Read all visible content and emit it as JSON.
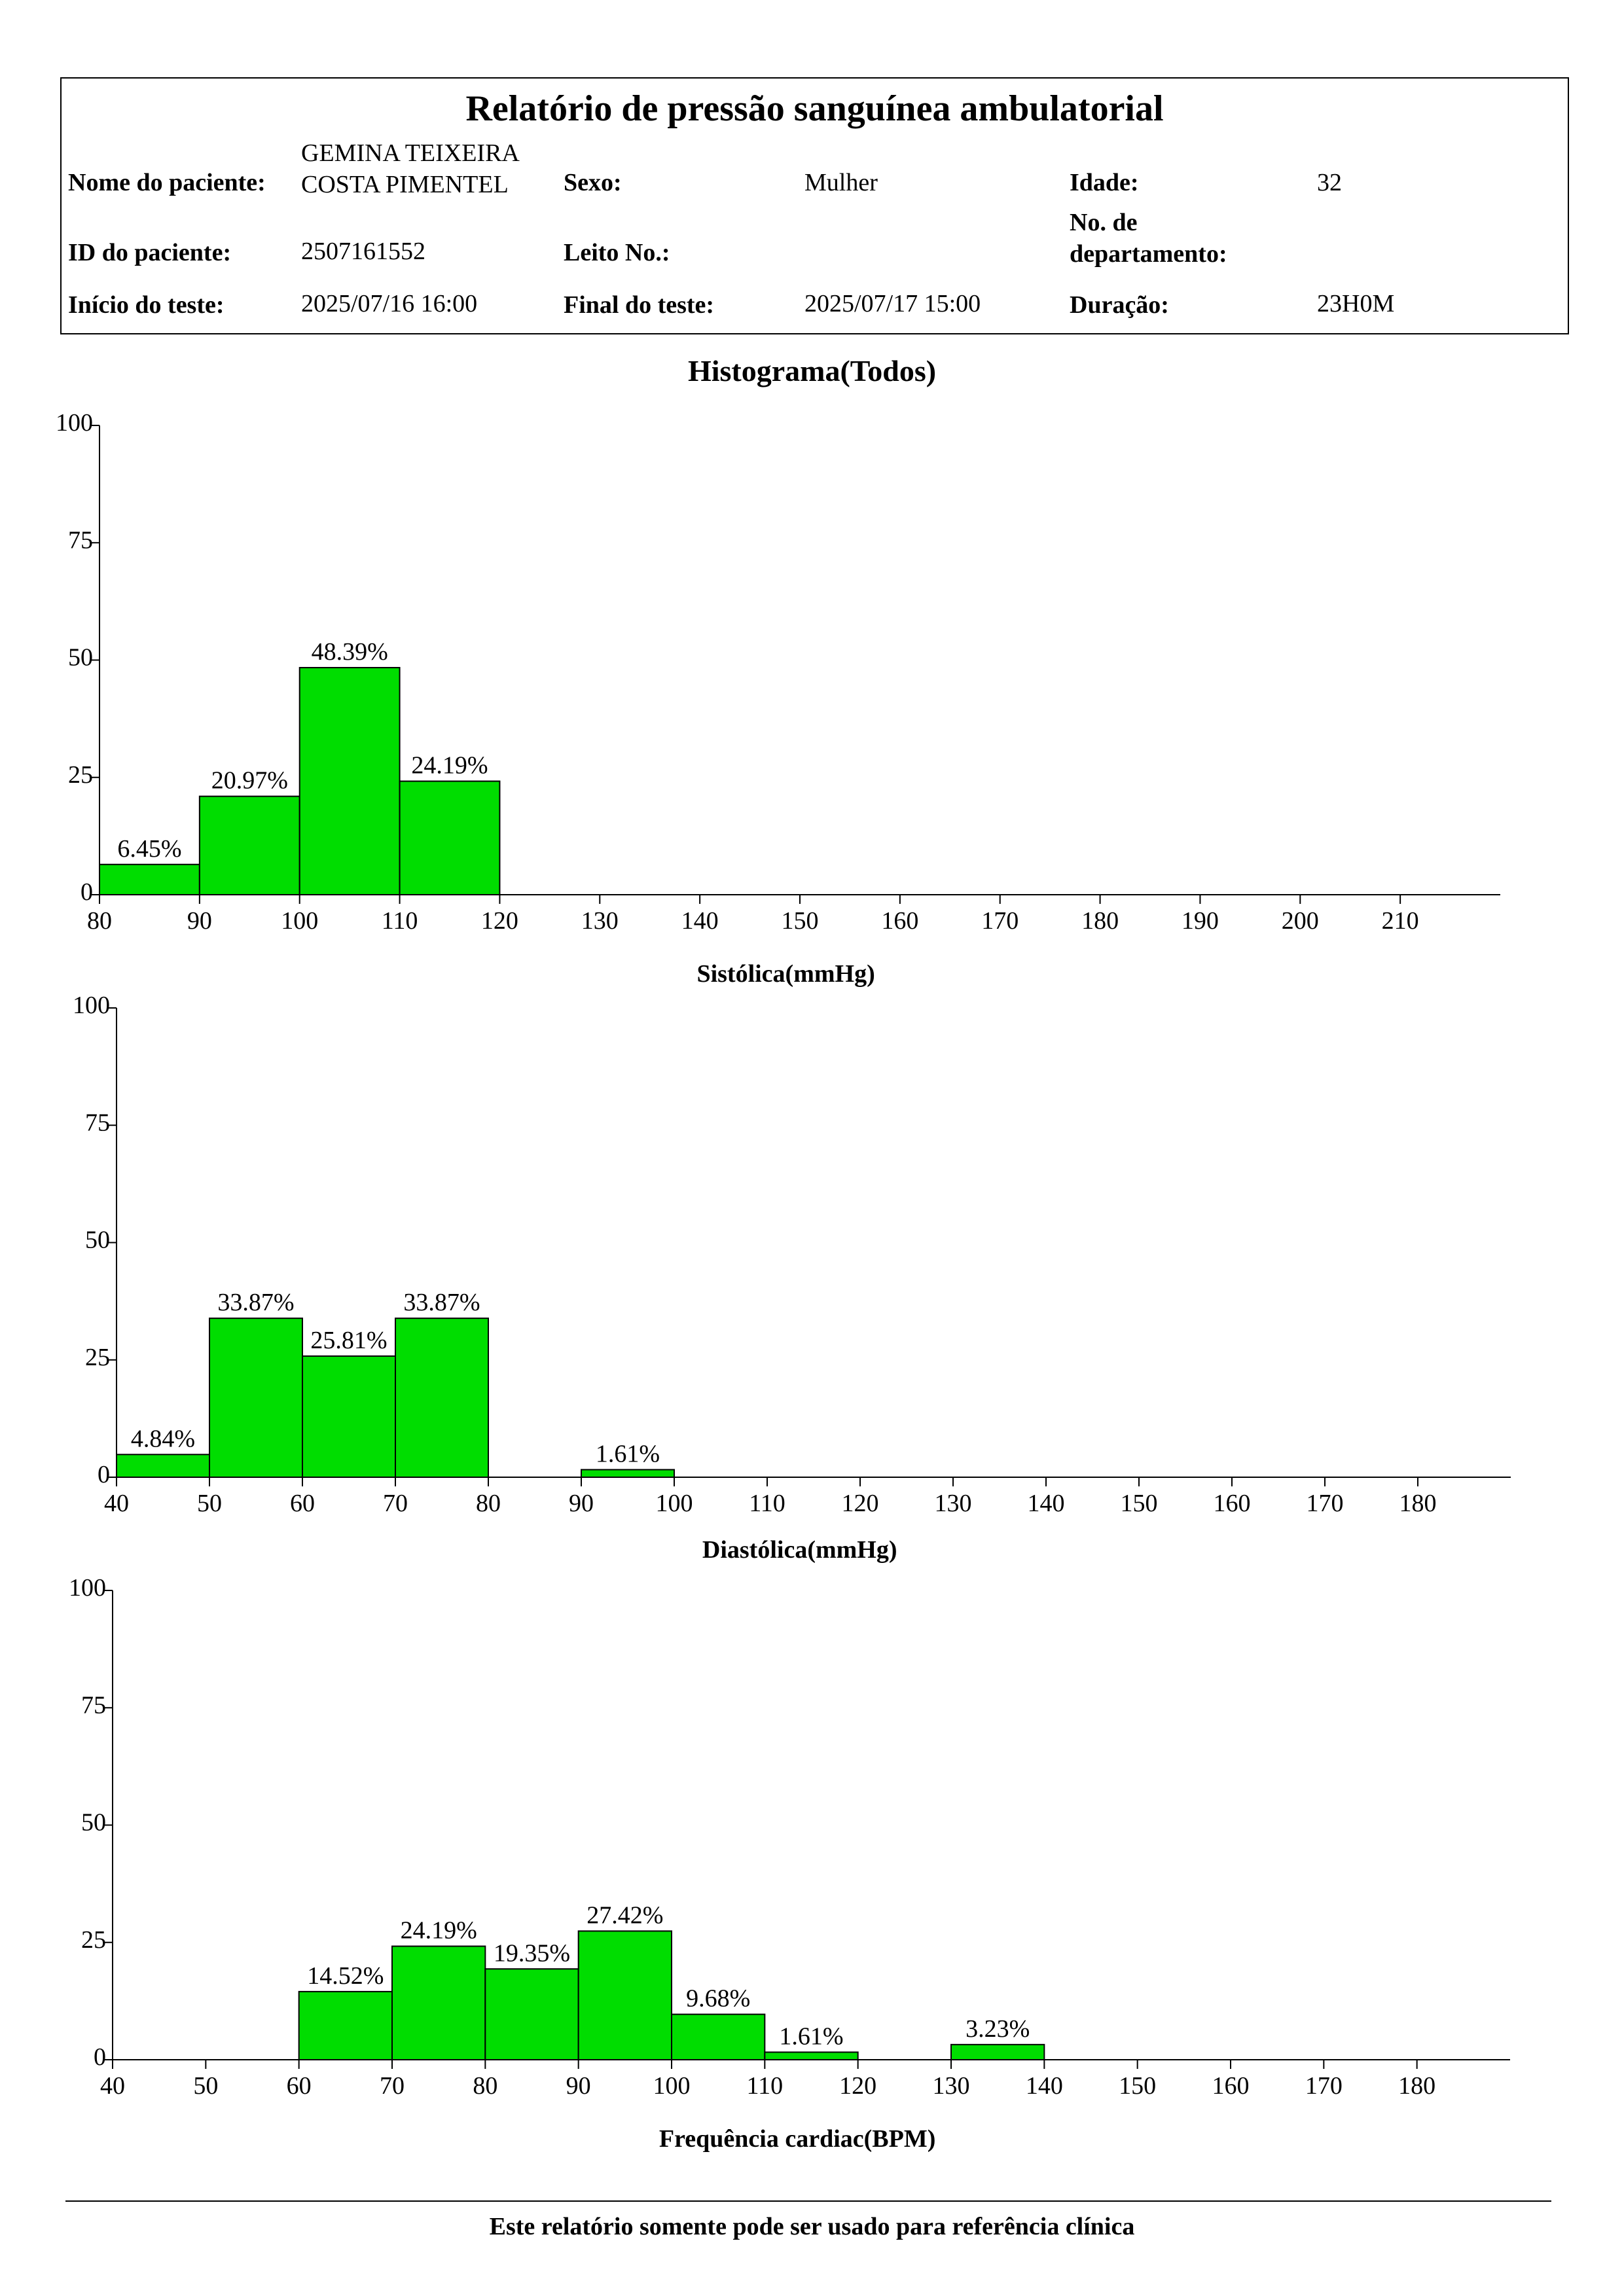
{
  "report": {
    "title": "Relatório de pressão sanguínea ambulatorial",
    "patient_name_label": "Nome do paciente:",
    "patient_name_line1": "GEMINA TEIXEIRA",
    "patient_name_line2": "COSTA PIMENTEL",
    "sex_label": "Sexo:",
    "sex_value": "Mulher",
    "age_label": "Idade:",
    "age_value": "32",
    "patient_id_label": "ID do paciente:",
    "patient_id_value": "2507161552",
    "bed_label": "Leito No.:",
    "bed_value": "",
    "dept_label_line1": "No. de",
    "dept_label_line2": "departamento:",
    "dept_value": "",
    "start_label": "Início do teste:",
    "start_value": "2025/07/16 16:00",
    "end_label": "Final do teste:",
    "end_value": "2025/07/17 15:00",
    "duration_label": "Duração:",
    "duration_value": "23H0M"
  },
  "section_title": "Histograma(Todos)",
  "footer": "Este relatório somente pode ser usado para referência clínica",
  "colors": {
    "bar_fill": "#00dd00",
    "bar_stroke": "#000000",
    "axis": "#000000"
  },
  "chart_data": [
    {
      "type": "bar",
      "title": "",
      "xlabel": "Sistólica(mmHg)",
      "ylabel": "",
      "xlim": [
        80,
        220
      ],
      "ylim": [
        0,
        100
      ],
      "xticks": [
        80,
        90,
        100,
        110,
        120,
        130,
        140,
        150,
        160,
        170,
        180,
        190,
        200,
        210
      ],
      "yticks": [
        0,
        25,
        50,
        75,
        100
      ],
      "bins": [
        {
          "start": 80,
          "end": 90,
          "value": 6.45,
          "label": "6.45%"
        },
        {
          "start": 90,
          "end": 100,
          "value": 20.97,
          "label": "20.97%"
        },
        {
          "start": 100,
          "end": 110,
          "value": 48.39,
          "label": "48.39%"
        },
        {
          "start": 110,
          "end": 120,
          "value": 24.19,
          "label": "24.19%"
        }
      ]
    },
    {
      "type": "bar",
      "title": "",
      "xlabel": "Diastólica(mmHg)",
      "ylabel": "",
      "xlim": [
        40,
        190
      ],
      "ylim": [
        0,
        100
      ],
      "xticks": [
        40,
        50,
        60,
        70,
        80,
        90,
        100,
        110,
        120,
        130,
        140,
        150,
        160,
        170,
        180
      ],
      "yticks": [
        0,
        25,
        50,
        75,
        100
      ],
      "bins": [
        {
          "start": 40,
          "end": 50,
          "value": 4.84,
          "label": "4.84%"
        },
        {
          "start": 50,
          "end": 60,
          "value": 33.87,
          "label": "33.87%"
        },
        {
          "start": 60,
          "end": 70,
          "value": 25.81,
          "label": "25.81%"
        },
        {
          "start": 70,
          "end": 80,
          "value": 33.87,
          "label": "33.87%"
        },
        {
          "start": 90,
          "end": 100,
          "value": 1.61,
          "label": "1.61%"
        }
      ]
    },
    {
      "type": "bar",
      "title": "",
      "xlabel": "Frequência cardiac(BPM)",
      "ylabel": "",
      "xlim": [
        40,
        190
      ],
      "ylim": [
        0,
        100
      ],
      "xticks": [
        40,
        50,
        60,
        70,
        80,
        90,
        100,
        110,
        120,
        130,
        140,
        150,
        160,
        170,
        180
      ],
      "yticks": [
        0,
        25,
        50,
        75,
        100
      ],
      "bins": [
        {
          "start": 60,
          "end": 70,
          "value": 14.52,
          "label": "14.52%"
        },
        {
          "start": 70,
          "end": 80,
          "value": 24.19,
          "label": "24.19%"
        },
        {
          "start": 80,
          "end": 90,
          "value": 19.35,
          "label": "19.35%"
        },
        {
          "start": 90,
          "end": 100,
          "value": 27.42,
          "label": "27.42%"
        },
        {
          "start": 100,
          "end": 110,
          "value": 9.68,
          "label": "9.68%"
        },
        {
          "start": 110,
          "end": 120,
          "value": 1.61,
          "label": "1.61%"
        },
        {
          "start": 130,
          "end": 140,
          "value": 3.23,
          "label": "3.23%"
        }
      ]
    }
  ]
}
